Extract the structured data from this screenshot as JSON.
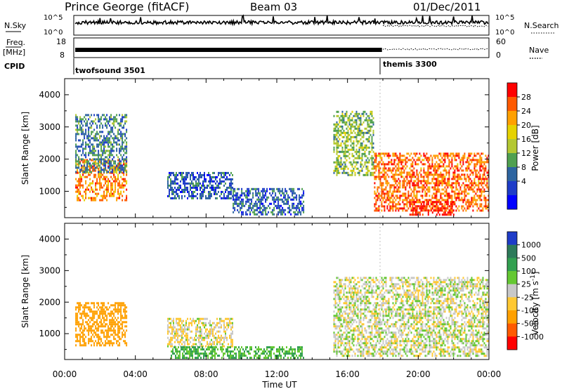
{
  "header": {
    "station": "Prince George (fitACF)",
    "beam": "Beam 03",
    "date": "01/Dec/2011"
  },
  "summary_panels": {
    "nsky": {
      "left_label": "N.Sky",
      "left_ticks": [
        "10^5",
        "10^0"
      ],
      "right_label": "N.Search",
      "right_ticks": [
        "10^5",
        "10^0"
      ]
    },
    "freq": {
      "left_label_1": "Freq.",
      "left_label_2": "[MHz]",
      "left_ticks": [
        "18",
        "8"
      ],
      "right_label": "Nave",
      "right_ticks": [
        "60",
        "0"
      ]
    },
    "cpid": {
      "label": "CPID",
      "segments": [
        {
          "name": "twofsound 3501",
          "start_hour": 0.6,
          "end_hour": 18.0
        },
        {
          "name": "themis 3300",
          "start_hour": 18.0,
          "end_hour": 24.0
        }
      ]
    }
  },
  "chart_data": [
    {
      "type": "heatmap",
      "name": "power",
      "ylabel": "Slant Range [km]",
      "ylim": [
        180,
        4500
      ],
      "yticks": [
        1000,
        2000,
        3000,
        4000
      ],
      "xlim": [
        0,
        24
      ],
      "colorbar": {
        "label": "Power [dB]",
        "ticks": [
          "28",
          "24",
          "20",
          "16",
          "12",
          "8",
          "4"
        ],
        "colors": [
          "#ff0000",
          "#ff5a00",
          "#ffa000",
          "#e6d200",
          "#b4c832",
          "#50a050",
          "#2d64a0",
          "#1e3cc8",
          "#0000ff"
        ]
      },
      "regions": [
        {
          "x": [
            0.6,
            3.5
          ],
          "y": [
            700,
            2000
          ],
          "v": 0.8
        },
        {
          "x": [
            0.6,
            3.5
          ],
          "y": [
            1600,
            3400
          ],
          "v": 0.3
        },
        {
          "x": [
            5.8,
            9.5
          ],
          "y": [
            800,
            1600
          ],
          "v": 0.2
        },
        {
          "x": [
            9.5,
            13.5
          ],
          "y": [
            300,
            1100
          ],
          "v": 0.2
        },
        {
          "x": [
            15.2,
            17.5
          ],
          "y": [
            1500,
            3500
          ],
          "v": 0.45
        },
        {
          "x": [
            17.5,
            24
          ],
          "y": [
            400,
            2200
          ],
          "v": 0.85
        },
        {
          "x": [
            19.5,
            22
          ],
          "y": [
            250,
            700
          ],
          "v": 1.0
        }
      ]
    },
    {
      "type": "heatmap",
      "name": "velocity",
      "ylabel": "Slant Range [km]",
      "ylim": [
        180,
        4500
      ],
      "yticks": [
        1000,
        2000,
        3000,
        4000
      ],
      "xlim": [
        0,
        24
      ],
      "colorbar": {
        "label": "Velocity [m s",
        "label_exponent": "-1",
        "label_close": "]",
        "ticks": [
          "1000",
          "500",
          "100",
          "25",
          "-25",
          "-100",
          "-500",
          "-1000"
        ],
        "colors": [
          "#1e3cc8",
          "#2d7a5a",
          "#32a050",
          "#64c832",
          "#c8c8c8",
          "#ffc832",
          "#ffa000",
          "#ff5a00",
          "#ff0000"
        ]
      },
      "regions": [
        {
          "x": [
            0.6,
            3.5
          ],
          "y": [
            600,
            2000
          ],
          "v": -300
        },
        {
          "x": [
            5.8,
            9.5
          ],
          "y": [
            600,
            1500
          ],
          "v": -25
        },
        {
          "x": [
            6.0,
            13.5
          ],
          "y": [
            250,
            600
          ],
          "v": 100
        },
        {
          "x": [
            15.2,
            24
          ],
          "y": [
            300,
            2800
          ],
          "v": 0
        }
      ]
    }
  ],
  "x_axis": {
    "ticks": [
      "00:00",
      "04:00",
      "08:00",
      "12:00",
      "16:00",
      "20:00",
      "00:00"
    ],
    "label": "Time UT"
  }
}
